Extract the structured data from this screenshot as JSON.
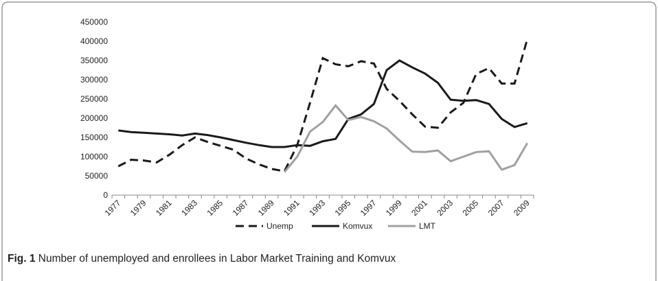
{
  "chart_data": {
    "type": "line",
    "categories": [
      "1977",
      null,
      "1979",
      null,
      "1981",
      null,
      "1983",
      null,
      "1985",
      null,
      "1987",
      null,
      "1989",
      null,
      "1991",
      null,
      "1993",
      null,
      "1995",
      null,
      "1997",
      null,
      "1999",
      null,
      "2001",
      null,
      "2003",
      null,
      "2005",
      null,
      "2007",
      null,
      "2009"
    ],
    "series": [
      {
        "name": "Unemp",
        "color": "#1a1a1a",
        "dash": true,
        "values": [
          75000,
          92000,
          90000,
          85000,
          105000,
          130000,
          150000,
          138000,
          128000,
          118000,
          95000,
          80000,
          68000,
          62000,
          130000,
          240000,
          356000,
          340000,
          335000,
          348000,
          342000,
          276000,
          245000,
          210000,
          178000,
          175000,
          215000,
          240000,
          315000,
          330000,
          290000,
          290000,
          405000
        ]
      },
      {
        "name": "Komvux",
        "color": "#1a1a1a",
        "dash": false,
        "values": [
          168000,
          164000,
          162000,
          160000,
          158000,
          155000,
          160000,
          156000,
          150000,
          143000,
          136000,
          130000,
          125000,
          125000,
          130000,
          128000,
          140000,
          146000,
          198000,
          210000,
          237000,
          325000,
          350000,
          332000,
          316000,
          292000,
          248000,
          245000,
          247000,
          237000,
          198000,
          177000,
          187000
        ]
      },
      {
        "name": "LMT",
        "color": "#a0a0a0",
        "dash": false,
        "values": [
          null,
          null,
          null,
          null,
          null,
          null,
          null,
          null,
          null,
          null,
          null,
          null,
          null,
          60000,
          100000,
          165000,
          190000,
          233000,
          195000,
          203000,
          192000,
          173000,
          142000,
          113000,
          112000,
          116000,
          88000,
          100000,
          112000,
          114000,
          66000,
          78000,
          135000
        ]
      }
    ],
    "ylim": [
      0,
      450000
    ],
    "yticks": [
      0,
      50000,
      100000,
      150000,
      200000,
      250000,
      300000,
      350000,
      400000,
      450000
    ],
    "grid": false,
    "legend": "bottom"
  },
  "caption": {
    "label": "Fig. 1",
    "text": "Number of unemployed and enrollees in Labor Market Training and Komvux"
  }
}
